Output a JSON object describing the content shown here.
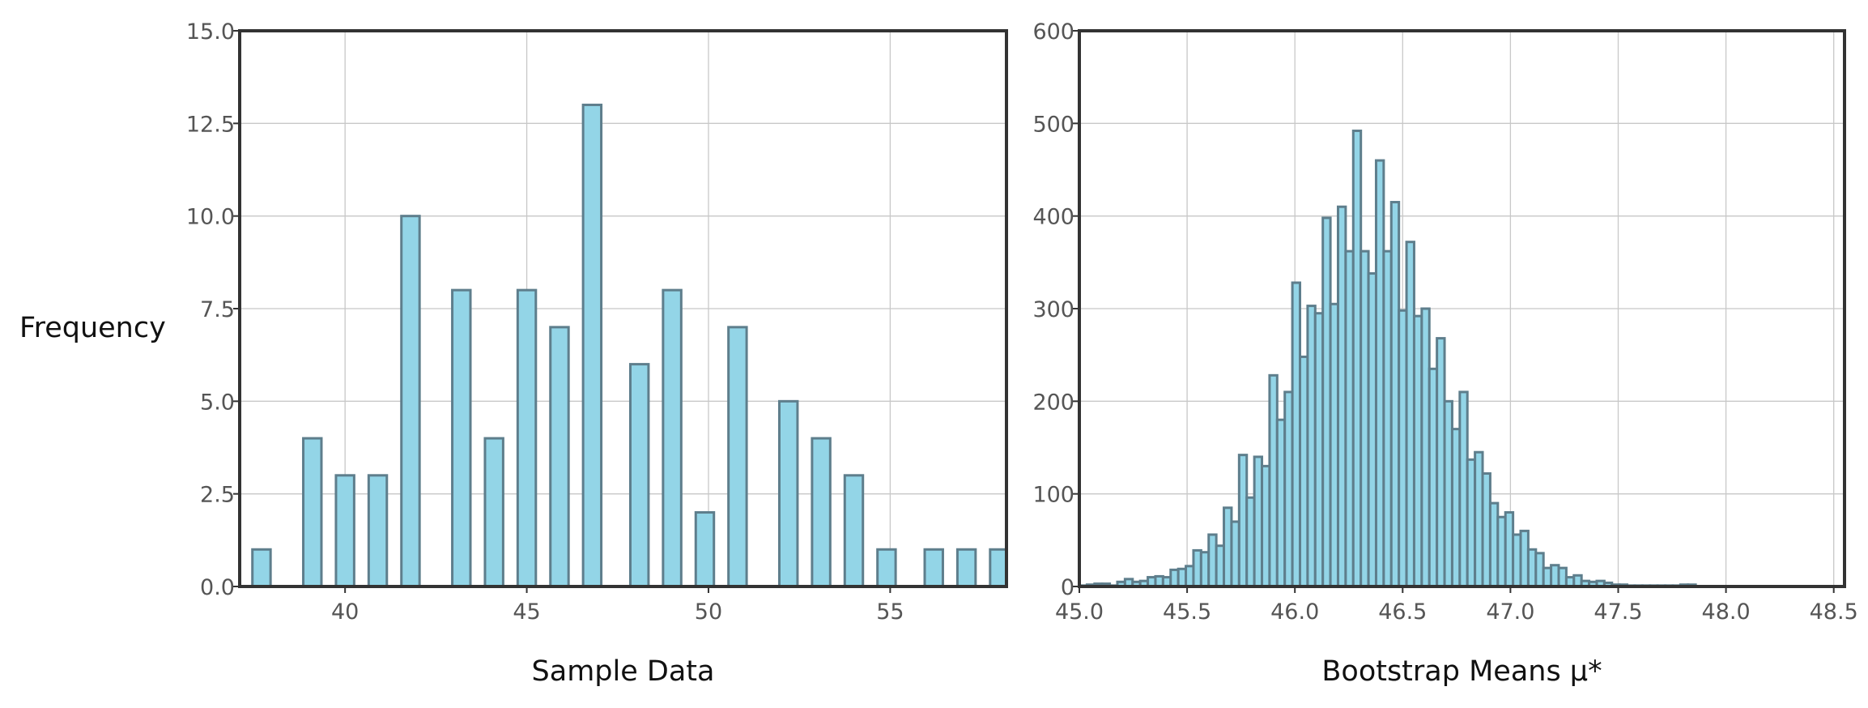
{
  "colors": {
    "bar_fill": "#93D5E7",
    "bar_edge": "#5E7E8C",
    "axis": "#333333",
    "grid": "#C8C8C8",
    "tick_text": "#555555"
  },
  "chart_data": [
    {
      "type": "bar",
      "title": "",
      "xlabel": "Sample Data",
      "ylabel": "Frequency",
      "xlim": [
        37.1,
        58.2
      ],
      "ylim": [
        0,
        15
      ],
      "grid": true,
      "xticks": [
        40,
        45,
        50,
        55
      ],
      "xtick_labels": [
        "40",
        "45",
        "50",
        "55"
      ],
      "yticks": [
        0,
        2.5,
        5,
        7.5,
        10,
        12.5,
        15
      ],
      "ytick_labels": [
        "0.0",
        "2.5",
        "5.0",
        "7.5",
        "10.0",
        "12.5",
        "15.0"
      ],
      "bin_width": 0.5,
      "series": [
        {
          "x": [
            37.7,
            39.1,
            40.0,
            40.9,
            41.8,
            43.2,
            44.1,
            45.0,
            45.9,
            46.8,
            48.1,
            49.0,
            49.9,
            50.8,
            52.2,
            53.1,
            54.0,
            54.9,
            56.2,
            57.1,
            58.0
          ],
          "values": [
            1,
            4,
            3,
            3,
            10,
            8,
            4,
            8,
            7,
            13,
            6,
            8,
            2,
            7,
            5,
            4,
            3,
            1,
            1,
            1,
            1
          ]
        }
      ]
    },
    {
      "type": "bar",
      "title": "",
      "xlabel": "Bootstrap Means μ*",
      "ylabel": "",
      "xlim": [
        45.0,
        48.55
      ],
      "ylim": [
        0,
        600
      ],
      "grid": true,
      "xticks": [
        45.0,
        45.5,
        46.0,
        46.5,
        47.0,
        47.5,
        48.0,
        48.5
      ],
      "xtick_labels": [
        "45.0",
        "45.5",
        "46.0",
        "46.5",
        "47.0",
        "47.5",
        "48.0",
        "48.5"
      ],
      "yticks": [
        0,
        100,
        200,
        300,
        400,
        500,
        600
      ],
      "ytick_labels": [
        "0",
        "100",
        "200",
        "300",
        "400",
        "500",
        "600"
      ],
      "bin_start": 45.0,
      "bin_width": 0.0353,
      "series": [
        {
          "values": [
            1,
            2,
            3,
            3,
            1,
            5,
            8,
            5,
            6,
            10,
            11,
            10,
            18,
            19,
            22,
            39,
            37,
            56,
            44,
            85,
            70,
            142,
            96,
            140,
            130,
            228,
            180,
            210,
            328,
            248,
            303,
            295,
            398,
            305,
            410,
            362,
            492,
            362,
            338,
            460,
            362,
            415,
            298,
            372,
            292,
            300,
            235,
            268,
            200,
            170,
            210,
            137,
            145,
            122,
            90,
            75,
            80,
            56,
            60,
            40,
            36,
            20,
            23,
            20,
            10,
            12,
            6,
            5,
            6,
            4,
            2,
            2,
            1,
            1,
            1,
            1,
            1,
            1,
            1,
            2,
            2
          ]
        }
      ]
    }
  ]
}
